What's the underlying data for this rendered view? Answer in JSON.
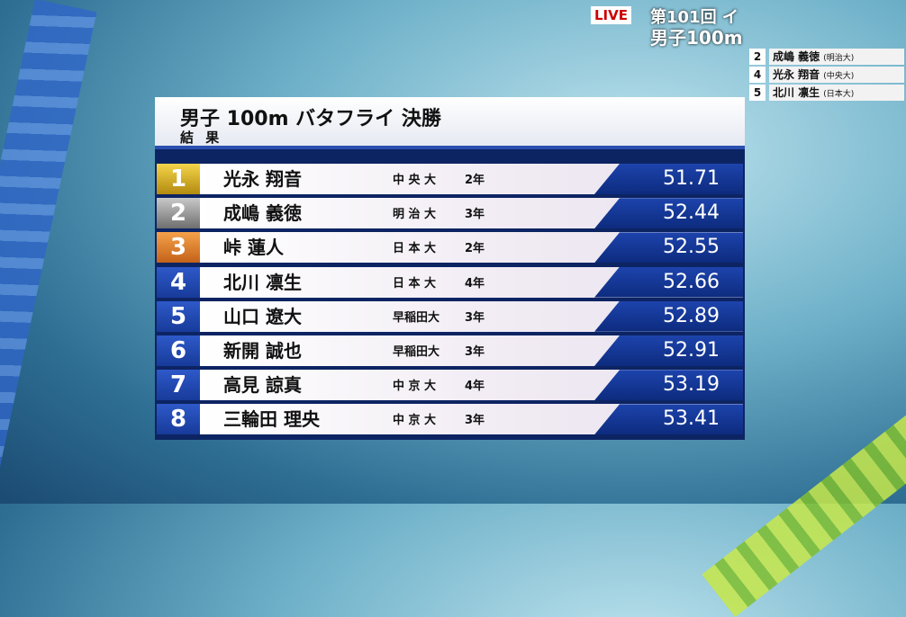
{
  "broadcast": {
    "live": "LIVE",
    "event_line1": "第101回 イ",
    "event_line2": "男子100m"
  },
  "corner_list": [
    {
      "lane": "2",
      "name": "成嶋 義徳",
      "school": "(明治大)"
    },
    {
      "lane": "4",
      "name": "光永 翔音",
      "school": "(中央大)"
    },
    {
      "lane": "5",
      "name": "北川 凛生",
      "school": "(日本大)"
    }
  ],
  "header": {
    "title": "男子 100m バタフライ 決勝",
    "subtitle": "結 果"
  },
  "table": {
    "rows": [
      {
        "rank": "1",
        "name": "光永 翔音",
        "school": "中 央 大",
        "grade": "2年",
        "time": "51.71"
      },
      {
        "rank": "2",
        "name": "成嶋 義徳",
        "school": "明 治 大",
        "grade": "3年",
        "time": "52.44"
      },
      {
        "rank": "3",
        "name": "峠 蓮人",
        "school": "日 本 大",
        "grade": "2年",
        "time": "52.55"
      },
      {
        "rank": "4",
        "name": "北川 凛生",
        "school": "日 本 大",
        "grade": "4年",
        "time": "52.66"
      },
      {
        "rank": "5",
        "name": "山口 遼大",
        "school": "早稲田大",
        "grade": "3年",
        "time": "52.89"
      },
      {
        "rank": "6",
        "name": "新開 誠也",
        "school": "早稲田大",
        "grade": "3年",
        "time": "52.91"
      },
      {
        "rank": "7",
        "name": "高見 諒真",
        "school": "中 京 大",
        "grade": "4年",
        "time": "53.19"
      },
      {
        "rank": "8",
        "name": "三輪田 理央",
        "school": "中 京 大",
        "grade": "3年",
        "time": "53.41"
      }
    ]
  }
}
